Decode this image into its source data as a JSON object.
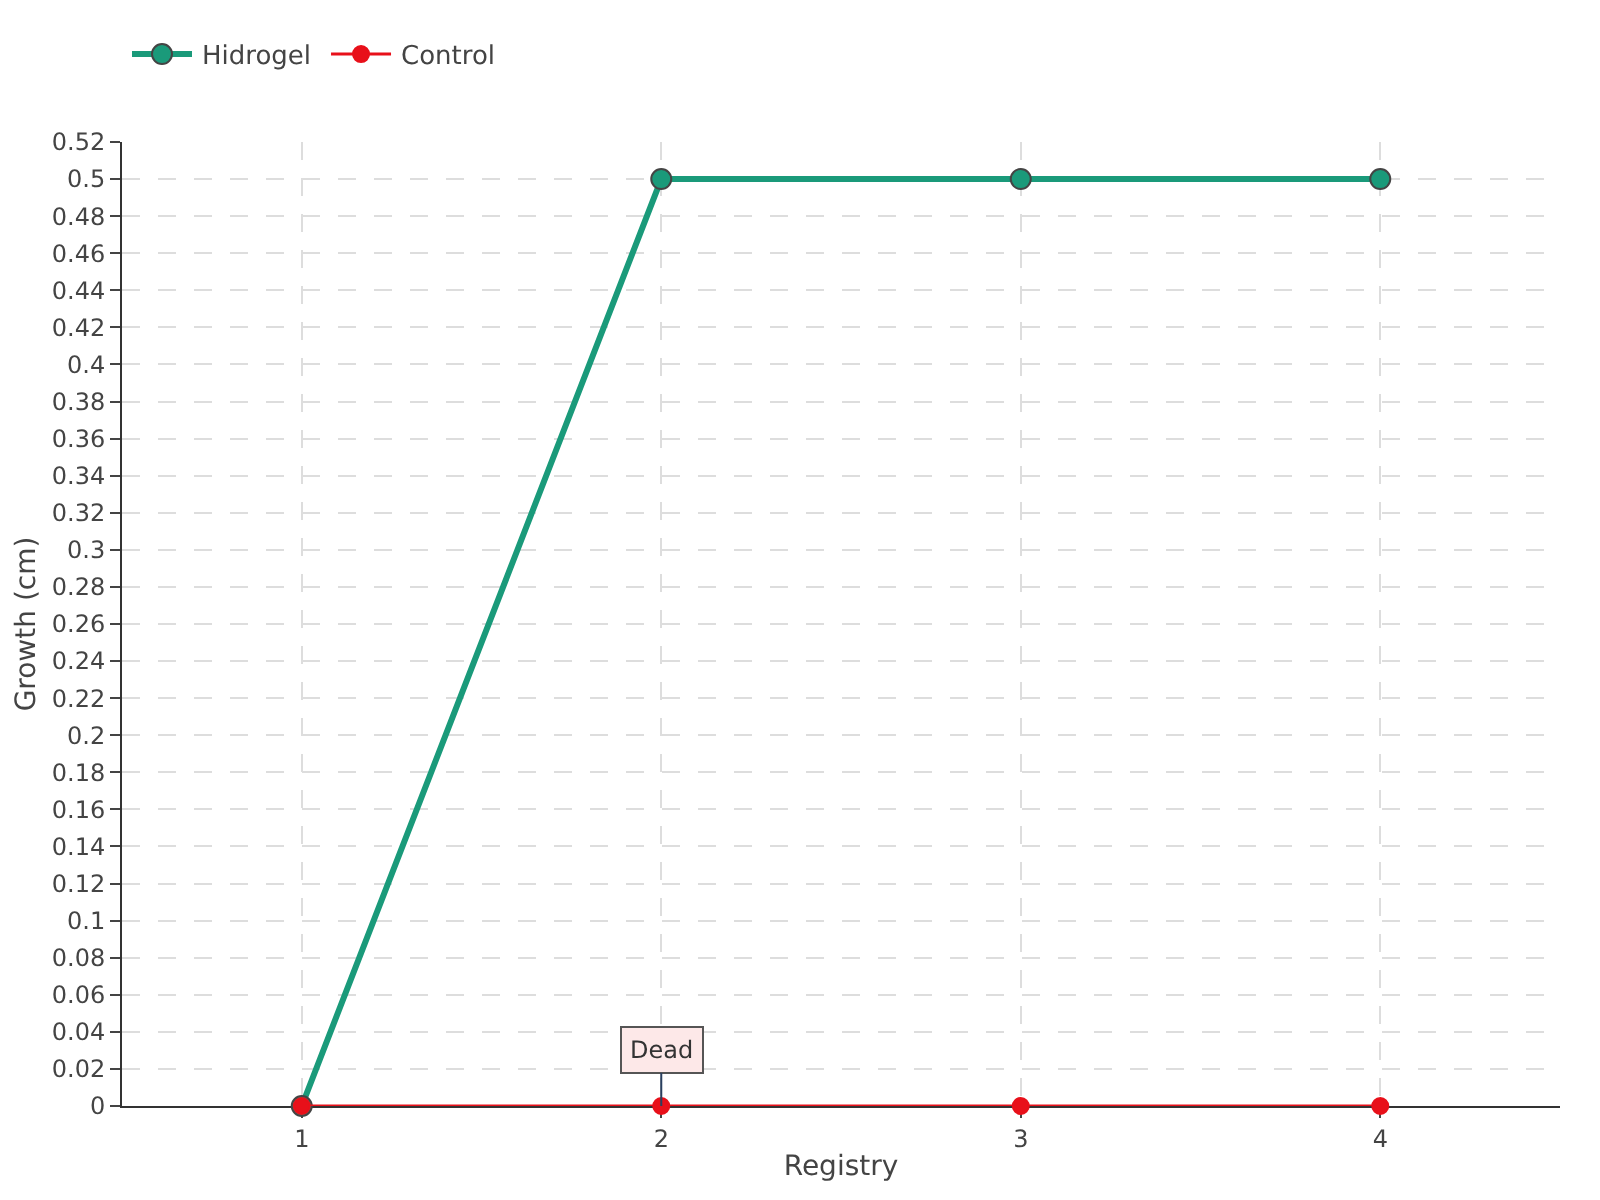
{
  "chart_data": {
    "type": "line",
    "xlabel": "Registry",
    "ylabel": "Growth (cm)",
    "categories": [
      "1",
      "2",
      "3",
      "4"
    ],
    "series": [
      {
        "name": "Hidrogel",
        "color": "#1a9a7a",
        "values": [
          0,
          0.5,
          0.5,
          0.5
        ]
      },
      {
        "name": "Control",
        "color": "#e8101a",
        "values": [
          0,
          0,
          0,
          0
        ]
      }
    ],
    "ylim": [
      0,
      0.52
    ],
    "yticks": [
      0,
      0.02,
      0.04,
      0.06,
      0.08,
      0.1,
      0.12,
      0.14,
      0.16,
      0.18,
      0.2,
      0.22,
      0.24,
      0.26,
      0.28,
      0.3,
      0.32,
      0.34,
      0.36,
      0.38,
      0.4,
      0.42,
      0.44,
      0.46,
      0.48,
      0.5,
      0.52
    ],
    "annotations": [
      {
        "text": "Dead",
        "x": "2",
        "y": 0
      }
    ],
    "grid": true,
    "legend": "top left",
    "marker": "circle",
    "line_style": "solid"
  }
}
